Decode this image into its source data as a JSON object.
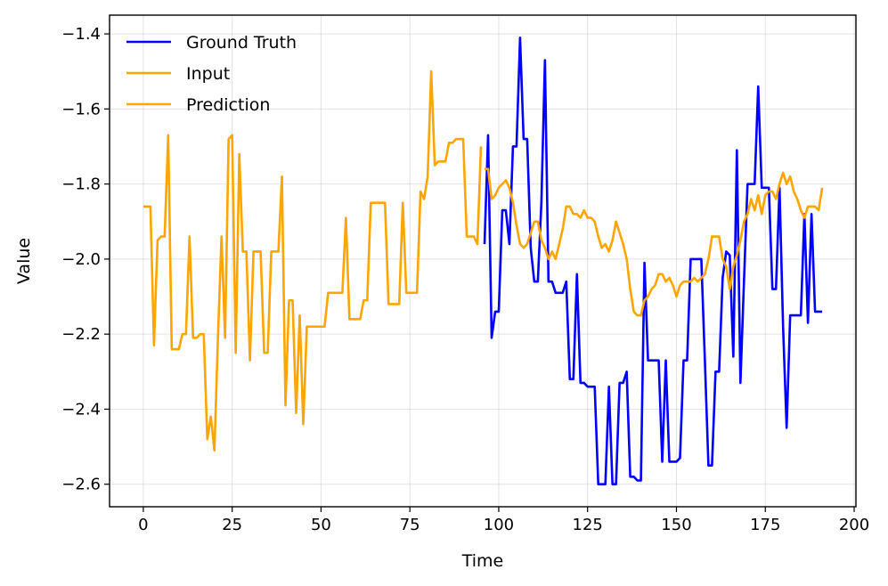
{
  "chart_data": {
    "type": "line",
    "title": "",
    "xlabel": "Time",
    "ylabel": "Value",
    "xlim": [
      -9.5,
      200.5
    ],
    "ylim": [
      -2.66,
      -1.35
    ],
    "xticks": [
      0,
      25,
      50,
      75,
      100,
      125,
      150,
      175,
      200
    ],
    "yticks": [
      -2.6,
      -2.4,
      -2.2,
      -2.0,
      -1.8,
      -1.6,
      -1.4
    ],
    "grid": true,
    "legend_position": "upper-left",
    "series": [
      {
        "name": "Ground Truth",
        "color": "#0000ff",
        "x": [
          96,
          97,
          98,
          99,
          100,
          101,
          102,
          103,
          104,
          105,
          106,
          107,
          108,
          109,
          110,
          111,
          112,
          113,
          114,
          115,
          116,
          117,
          118,
          119,
          120,
          121,
          122,
          123,
          124,
          125,
          126,
          127,
          128,
          129,
          130,
          131,
          132,
          133,
          134,
          135,
          136,
          137,
          138,
          139,
          140,
          141,
          142,
          143,
          144,
          145,
          146,
          147,
          148,
          149,
          150,
          151,
          152,
          153,
          154,
          155,
          156,
          157,
          158,
          159,
          160,
          161,
          162,
          163,
          164,
          165,
          166,
          167,
          168,
          169,
          170,
          171,
          172,
          173,
          174,
          175,
          176,
          177,
          178,
          179,
          180,
          181,
          182,
          183,
          184,
          185,
          186,
          187,
          188,
          189,
          190,
          191
        ],
        "y": [
          -1.96,
          -1.67,
          -2.21,
          -2.14,
          -2.14,
          -1.87,
          -1.87,
          -1.96,
          -1.7,
          -1.7,
          -1.41,
          -1.68,
          -1.68,
          -1.97,
          -2.06,
          -2.06,
          -1.85,
          -1.47,
          -2.06,
          -2.06,
          -2.09,
          -2.09,
          -2.09,
          -2.06,
          -2.32,
          -2.32,
          -2.04,
          -2.33,
          -2.33,
          -2.34,
          -2.34,
          -2.34,
          -2.6,
          -2.6,
          -2.6,
          -2.34,
          -2.6,
          -2.6,
          -2.33,
          -2.33,
          -2.3,
          -2.58,
          -2.58,
          -2.59,
          -2.59,
          -2.01,
          -2.27,
          -2.27,
          -2.27,
          -2.27,
          -2.54,
          -2.27,
          -2.54,
          -2.54,
          -2.54,
          -2.53,
          -2.27,
          -2.27,
          -2.0,
          -2.0,
          -2.0,
          -2.0,
          -2.27,
          -2.55,
          -2.55,
          -2.3,
          -2.3,
          -2.05,
          -1.98,
          -1.99,
          -2.26,
          -1.71,
          -2.33,
          -2.06,
          -1.8,
          -1.8,
          -1.8,
          -1.54,
          -1.81,
          -1.81,
          -1.81,
          -2.08,
          -2.08,
          -1.81,
          -2.18,
          -2.45,
          -2.15,
          -2.15,
          -2.15,
          -2.15,
          -1.88,
          -2.17,
          -1.88,
          -2.14,
          -2.14,
          -2.14
        ]
      },
      {
        "name": "Input",
        "color": "#ffa500",
        "x": [
          0,
          1,
          2,
          3,
          4,
          5,
          6,
          7,
          8,
          9,
          10,
          11,
          12,
          13,
          14,
          15,
          16,
          17,
          18,
          19,
          20,
          21,
          22,
          23,
          24,
          25,
          26,
          27,
          28,
          29,
          30,
          31,
          32,
          33,
          34,
          35,
          36,
          37,
          38,
          39,
          40,
          41,
          42,
          43,
          44,
          45,
          46,
          47,
          48,
          49,
          50,
          51,
          52,
          53,
          54,
          55,
          56,
          57,
          58,
          59,
          60,
          61,
          62,
          63,
          64,
          65,
          66,
          67,
          68,
          69,
          70,
          71,
          72,
          73,
          74,
          75,
          76,
          77,
          78,
          79,
          80,
          81,
          82,
          83,
          84,
          85,
          86,
          87,
          88,
          89,
          90,
          91,
          92,
          93,
          94,
          95
        ],
        "y": [
          -1.86,
          -1.86,
          -1.86,
          -2.23,
          -1.95,
          -1.94,
          -1.94,
          -1.67,
          -2.24,
          -2.24,
          -2.24,
          -2.2,
          -2.2,
          -1.94,
          -2.21,
          -2.21,
          -2.2,
          -2.2,
          -2.48,
          -2.42,
          -2.51,
          -2.21,
          -1.94,
          -2.21,
          -1.68,
          -1.67,
          -2.25,
          -1.72,
          -1.98,
          -1.98,
          -2.27,
          -1.98,
          -1.98,
          -1.98,
          -2.25,
          -2.25,
          -1.98,
          -1.98,
          -1.98,
          -1.78,
          -2.39,
          -2.11,
          -2.11,
          -2.41,
          -2.15,
          -2.44,
          -2.18,
          -2.18,
          -2.18,
          -2.18,
          -2.18,
          -2.18,
          -2.09,
          -2.09,
          -2.09,
          -2.09,
          -2.09,
          -1.89,
          -2.16,
          -2.16,
          -2.16,
          -2.16,
          -2.11,
          -2.11,
          -1.85,
          -1.85,
          -1.85,
          -1.85,
          -1.85,
          -2.12,
          -2.12,
          -2.12,
          -2.12,
          -1.85,
          -2.09,
          -2.09,
          -2.09,
          -2.09,
          -1.82,
          -1.84,
          -1.78,
          -1.5,
          -1.75,
          -1.74,
          -1.74,
          -1.74,
          -1.69,
          -1.69,
          -1.68,
          -1.68,
          -1.68,
          -1.94,
          -1.94,
          -1.94,
          -1.96,
          -1.7
        ]
      },
      {
        "name": "Prediction",
        "color": "#ffa500",
        "x": [
          96,
          97,
          98,
          99,
          100,
          101,
          102,
          103,
          104,
          105,
          106,
          107,
          108,
          109,
          110,
          111,
          112,
          113,
          114,
          115,
          116,
          117,
          118,
          119,
          120,
          121,
          122,
          123,
          124,
          125,
          126,
          127,
          128,
          129,
          130,
          131,
          132,
          133,
          134,
          135,
          136,
          137,
          138,
          139,
          140,
          141,
          142,
          143,
          144,
          145,
          146,
          147,
          148,
          149,
          150,
          151,
          152,
          153,
          154,
          155,
          156,
          157,
          158,
          159,
          160,
          161,
          162,
          163,
          164,
          165,
          166,
          167,
          168,
          169,
          170,
          171,
          172,
          173,
          174,
          175,
          176,
          177,
          178,
          179,
          180,
          181,
          182,
          183,
          184,
          185,
          186,
          187,
          188,
          189,
          190,
          191
        ],
        "y": [
          -1.76,
          -1.76,
          -1.84,
          -1.83,
          -1.81,
          -1.8,
          -1.79,
          -1.81,
          -1.85,
          -1.91,
          -1.96,
          -1.97,
          -1.96,
          -1.93,
          -1.9,
          -1.9,
          -1.95,
          -1.97,
          -2.0,
          -1.98,
          -2.0,
          -1.96,
          -1.92,
          -1.86,
          -1.86,
          -1.88,
          -1.88,
          -1.89,
          -1.87,
          -1.89,
          -1.89,
          -1.9,
          -1.94,
          -1.97,
          -1.96,
          -1.98,
          -1.95,
          -1.9,
          -1.93,
          -1.96,
          -2.0,
          -2.08,
          -2.14,
          -2.15,
          -2.15,
          -2.11,
          -2.1,
          -2.08,
          -2.07,
          -2.04,
          -2.04,
          -2.06,
          -2.05,
          -2.07,
          -2.1,
          -2.07,
          -2.06,
          -2.06,
          -2.06,
          -2.05,
          -2.06,
          -2.05,
          -2.04,
          -2.0,
          -1.94,
          -1.94,
          -1.94,
          -2.0,
          -2.02,
          -2.08,
          -2.02,
          -1.99,
          -1.95,
          -1.9,
          -1.88,
          -1.84,
          -1.87,
          -1.83,
          -1.88,
          -1.83,
          -1.82,
          -1.82,
          -1.84,
          -1.8,
          -1.77,
          -1.8,
          -1.78,
          -1.82,
          -1.84,
          -1.87,
          -1.89,
          -1.86,
          -1.86,
          -1.86,
          -1.87,
          -1.81
        ]
      }
    ]
  }
}
